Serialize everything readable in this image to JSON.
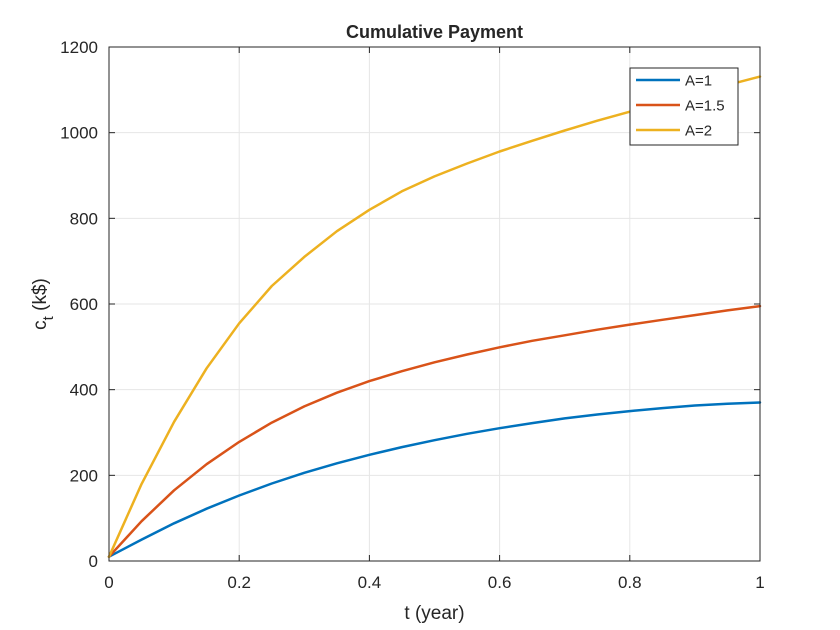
{
  "chart_data": {
    "type": "line",
    "title": "Cumulative Payment",
    "xlabel": "t (year)",
    "ylabel_main": "c",
    "ylabel_sub": "t",
    "ylabel_rest": " (k$)",
    "xlim": [
      0,
      1
    ],
    "ylim": [
      0,
      1200
    ],
    "xticks": [
      0,
      0.2,
      0.4,
      0.6,
      0.8,
      1
    ],
    "xtick_labels": [
      "0",
      "0.2",
      "0.4",
      "0.6",
      "0.8",
      "1"
    ],
    "yticks": [
      0,
      200,
      400,
      600,
      800,
      1000,
      1200
    ],
    "ytick_labels": [
      "0",
      "200",
      "400",
      "600",
      "800",
      "1000",
      "1200"
    ],
    "grid": true,
    "legend_position": "top-right",
    "x": [
      0,
      0.05,
      0.1,
      0.15,
      0.2,
      0.25,
      0.3,
      0.35,
      0.4,
      0.45,
      0.5,
      0.55,
      0.6,
      0.65,
      0.7,
      0.75,
      0.8,
      0.85,
      0.9,
      0.95,
      1.0
    ],
    "series": [
      {
        "name": "A=1",
        "color": "#0072BD",
        "values": [
          10,
          50,
          88,
          122,
          153,
          181,
          206,
          228,
          248,
          266,
          282,
          297,
          310,
          322,
          333,
          342,
          350,
          357,
          363,
          367,
          370
        ]
      },
      {
        "name": "A=1.5",
        "color": "#D95319",
        "values": [
          10,
          93,
          165,
          226,
          278,
          323,
          361,
          393,
          420,
          443,
          464,
          482,
          499,
          514,
          527,
          540,
          552,
          563,
          574,
          585,
          595
        ]
      },
      {
        "name": "A=2",
        "color": "#EDB120",
        "values": [
          10,
          180,
          325,
          450,
          555,
          642,
          710,
          770,
          820,
          863,
          898,
          928,
          956,
          981,
          1005,
          1028,
          1049,
          1070,
          1091,
          1111,
          1131
        ]
      }
    ]
  }
}
